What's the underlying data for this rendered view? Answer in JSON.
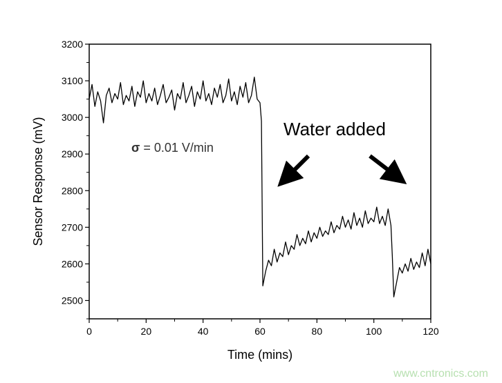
{
  "chart_data": {
    "type": "line",
    "title": "",
    "xlabel": "Time (mins)",
    "ylabel": "Sensor Response (mV)",
    "xlim": [
      0,
      120
    ],
    "ylim": [
      2450,
      3200
    ],
    "xticks": [
      0,
      20,
      40,
      60,
      80,
      100,
      120
    ],
    "yticks": [
      2500,
      2600,
      2700,
      2800,
      2900,
      3000,
      3100,
      3200
    ],
    "grid": false,
    "line_color": "#000000",
    "annotations": {
      "sigma_label": "σ",
      "sigma_text": " = 0.01 V/min",
      "event_label": "Water added",
      "event_arrows_point_to_x": [
        61,
        107
      ]
    },
    "series": [
      {
        "x": [
          0,
          1,
          2,
          3,
          4,
          5,
          6,
          7,
          8,
          9,
          10,
          11,
          12,
          13,
          14,
          15,
          16,
          17,
          18,
          19,
          20,
          21,
          22,
          23,
          24,
          25,
          26,
          27,
          28,
          29,
          30,
          31,
          32,
          33,
          34,
          35,
          36,
          37,
          38,
          39,
          40,
          41,
          42,
          43,
          44,
          45,
          46,
          47,
          48,
          49,
          50,
          51,
          52,
          53,
          54,
          55,
          56,
          57,
          58,
          59,
          60,
          60.5,
          61,
          62,
          63,
          64,
          65,
          66,
          67,
          68,
          69,
          70,
          71,
          72,
          73,
          74,
          75,
          76,
          77,
          78,
          79,
          80,
          81,
          82,
          83,
          84,
          85,
          86,
          87,
          88,
          89,
          90,
          91,
          92,
          93,
          94,
          95,
          96,
          97,
          98,
          99,
          100,
          101,
          102,
          103,
          104,
          105,
          106,
          106.5,
          107,
          108,
          109,
          110,
          111,
          112,
          113,
          114,
          115,
          116,
          117,
          118,
          119,
          120
        ],
        "y": [
          3050,
          3090,
          3030,
          3070,
          3045,
          2985,
          3060,
          3080,
          3040,
          3065,
          3050,
          3095,
          3035,
          3060,
          3045,
          3085,
          3030,
          3070,
          3055,
          3100,
          3040,
          3065,
          3045,
          3080,
          3035,
          3060,
          3090,
          3040,
          3055,
          3075,
          3020,
          3065,
          3050,
          3095,
          3040,
          3060,
          3085,
          3030,
          3070,
          3050,
          3100,
          3045,
          3065,
          3035,
          3080,
          3055,
          3090,
          3040,
          3060,
          3105,
          3045,
          3070,
          3035,
          3085,
          3055,
          3095,
          3040,
          3060,
          3110,
          3050,
          3040,
          2990,
          2540,
          2580,
          2610,
          2595,
          2640,
          2605,
          2630,
          2620,
          2660,
          2625,
          2650,
          2640,
          2680,
          2650,
          2670,
          2655,
          2690,
          2660,
          2685,
          2670,
          2700,
          2675,
          2690,
          2680,
          2715,
          2685,
          2705,
          2695,
          2730,
          2700,
          2720,
          2695,
          2740,
          2705,
          2725,
          2700,
          2745,
          2710,
          2725,
          2715,
          2755,
          2710,
          2730,
          2705,
          2750,
          2705,
          2620,
          2510,
          2550,
          2590,
          2575,
          2600,
          2580,
          2615,
          2585,
          2605,
          2590,
          2630,
          2595,
          2640,
          2600
        ]
      }
    ]
  },
  "watermark": "www.cntronics.com"
}
